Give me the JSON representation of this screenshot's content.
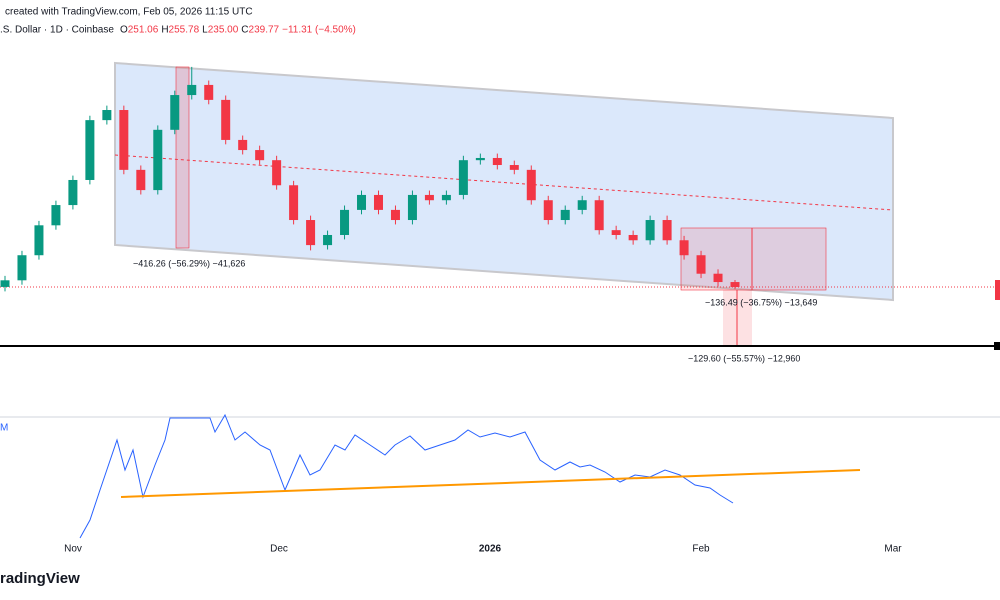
{
  "header": {
    "created": "created with TradingView.com, Feb 05, 2026 11:15 UTC",
    "symbol": ".S. Dollar · 1D · Coinbase",
    "ohlc": [
      {
        "label": "O",
        "value": "251.06"
      },
      {
        "label": "H",
        "value": "255.78"
      },
      {
        "label": "L",
        "value": "235.00"
      },
      {
        "label": "C",
        "value": "239.77"
      }
    ],
    "change": "−11.31 (−4.50%)"
  },
  "measurements": [
    "−416.26 (−56.29%) −41,626",
    "−136.49 (−36.75%) −13,649",
    "−129.60 (−55.57%) −12,960"
  ],
  "indicator_label": "M",
  "x_axis": [
    "Nov",
    "Dec",
    "2026",
    "Feb",
    "Mar"
  ],
  "footer": "radingView",
  "chart_data": {
    "type": "candlestick",
    "ylim": [
      108,
      892
    ],
    "open": [
      240,
      255,
      312,
      380,
      426,
      483,
      619,
      642,
      506,
      460,
      597,
      676,
      699,
      665,
      574,
      551,
      528,
      471,
      392,
      335,
      358,
      415,
      449,
      415,
      392,
      449,
      437,
      449,
      528,
      533,
      517,
      506,
      437,
      392,
      415,
      437,
      369,
      358,
      346,
      392,
      346,
      312,
      270,
      251.06
    ],
    "high": [
      265,
      322,
      390,
      436,
      493,
      629,
      652,
      652,
      516,
      607,
      686,
      740,
      709,
      675,
      584,
      561,
      538,
      481,
      402,
      368,
      425,
      459,
      459,
      425,
      459,
      459,
      459,
      538,
      543,
      543,
      527,
      516,
      447,
      425,
      447,
      447,
      379,
      368,
      402,
      402,
      356,
      322,
      280,
      255.78
    ],
    "low": [
      230,
      245,
      302,
      370,
      416,
      473,
      609,
      496,
      450,
      450,
      587,
      666,
      655,
      564,
      541,
      518,
      461,
      382,
      323,
      325,
      348,
      405,
      405,
      382,
      382,
      427,
      427,
      439,
      518,
      507,
      496,
      427,
      382,
      382,
      405,
      359,
      348,
      336,
      336,
      336,
      302,
      260,
      241,
      235
    ],
    "close": [
      255,
      312,
      380,
      426,
      483,
      619,
      642,
      506,
      460,
      597,
      676,
      699,
      665,
      574,
      551,
      528,
      471,
      392,
      335,
      358,
      415,
      449,
      415,
      392,
      449,
      437,
      449,
      528,
      533,
      517,
      506,
      437,
      392,
      415,
      437,
      369,
      358,
      346,
      392,
      346,
      312,
      270,
      251.06,
      239.77
    ],
    "up_color": "#089981",
    "down_color": "#f23645"
  }
}
